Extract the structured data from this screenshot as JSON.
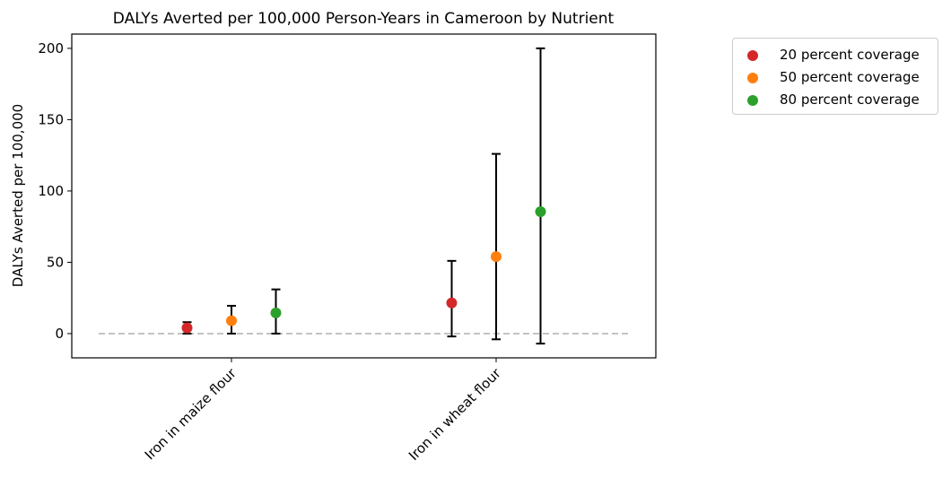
{
  "chart_data": {
    "type": "scatter",
    "title": "DALYs Averted per 100,000 Person-Years in Cameroon by Nutrient",
    "xlabel": "",
    "ylabel": "DALYs Averted per 100,000",
    "categories": [
      "Iron in maize flour",
      "Iron in wheat flour"
    ],
    "ylim": [
      -17,
      210
    ],
    "yticks": [
      0,
      50,
      100,
      150,
      200
    ],
    "reference_line": 0,
    "grid": false,
    "legend_position": "outside-top-right",
    "series": [
      {
        "name": "20 percent coverage",
        "color": "#d62728",
        "values": [
          4,
          21.5
        ],
        "lower": [
          0,
          -2
        ],
        "upper": [
          8,
          51
        ]
      },
      {
        "name": "50 percent coverage",
        "color": "#ff7f0e",
        "values": [
          9,
          54
        ],
        "lower": [
          0,
          -4
        ],
        "upper": [
          19.5,
          126
        ]
      },
      {
        "name": "80 percent coverage",
        "color": "#2ca02c",
        "values": [
          14.5,
          85.5
        ],
        "lower": [
          0,
          -7
        ],
        "upper": [
          31,
          200
        ]
      }
    ]
  },
  "colors": {
    "errorbar": "#000000",
    "reference_line": "#bbbbbb"
  }
}
